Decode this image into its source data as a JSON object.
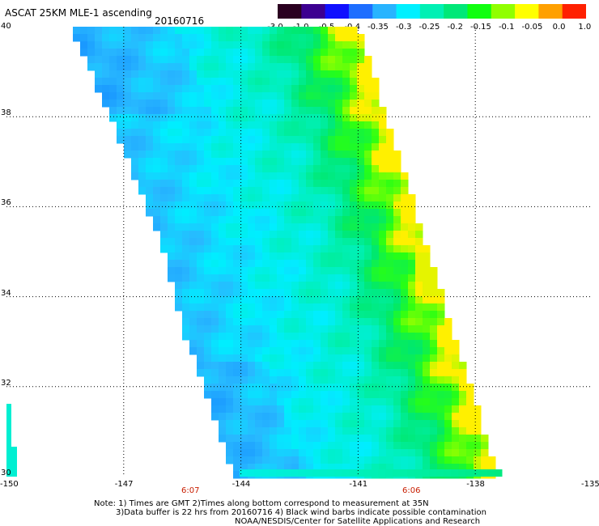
{
  "header": {
    "title": "ASCAT 25KM MLE-1 ascending",
    "date": "20160716"
  },
  "colorbar": {
    "labels": [
      "-3.0",
      "-1.0",
      "-0.5",
      "-0.4",
      "-0.35",
      "-0.3",
      "-0.25",
      "-0.2",
      "-0.15",
      "-0.1",
      "-0.05",
      "0.0",
      "1.0"
    ],
    "colors": [
      "#2a0020",
      "#3c0090",
      "#1010ff",
      "#1e6eff",
      "#28b4ff",
      "#00f0ff",
      "#00f0b4",
      "#00e878",
      "#10ff10",
      "#90ff00",
      "#ffff00",
      "#ffa000",
      "#ff2000"
    ]
  },
  "map": {
    "lon_range": [
      -150,
      -135
    ],
    "lat_range": [
      30,
      40
    ],
    "lon_ticks": [
      "-150",
      "-147",
      "-144",
      "-141",
      "-138",
      "-135"
    ],
    "lat_ticks": [
      "30",
      "32",
      "34",
      "36",
      "38",
      "40"
    ],
    "times": [
      "6:07",
      "6:06"
    ]
  },
  "notes": {
    "line1": "Note: 1) Times are GMT 2)Times along bottom correspond to measurement at 35N",
    "line2": "3)Data buffer is 22 hrs from 20160716 4) Black wind barbs indicate possible contamination",
    "line3": "NOAA/NESDIS/Center for Satellite Applications and Research"
  }
}
